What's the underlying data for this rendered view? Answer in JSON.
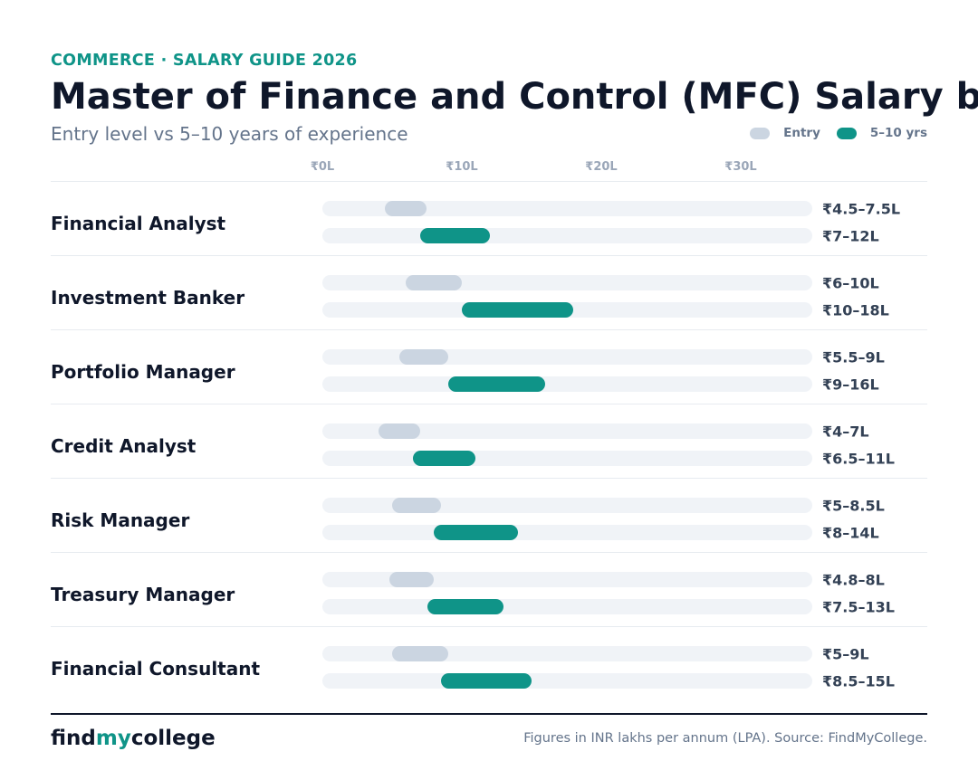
{
  "kicker": "COMMERCE · SALARY GUIDE 2026",
  "title": "Master of Finance and Control (MFC) Salary by",
  "subtitle": "Entry level vs 5–10 years of experience",
  "legend": {
    "entry_label": "Entry",
    "senior_label": "5–10 yrs",
    "entry_color": "#cbd5e1",
    "senior_color": "#0f9488"
  },
  "colors": {
    "accent": "#0f9488",
    "entry": "#cbd5e1",
    "track": "#f0f3f7"
  },
  "chart_data": {
    "type": "range-bar",
    "title": "Master of Finance and Control (MFC) Salary by",
    "subtitle": "Entry level vs 5–10 years of experience",
    "unit": "INR lakhs per annum",
    "x_ticks": [
      {
        "value": 0,
        "label": "₹0L"
      },
      {
        "value": 10,
        "label": "₹10L"
      },
      {
        "value": 20,
        "label": "₹20L"
      },
      {
        "value": 30,
        "label": "₹30L"
      }
    ],
    "xlim": [
      0,
      35
    ],
    "grid": false,
    "legend_position": "top-right",
    "series": [
      {
        "name": "Entry",
        "color": "#cbd5e1"
      },
      {
        "name": "5–10 yrs",
        "color": "#0f9488"
      }
    ],
    "roles": [
      {
        "name": "Financial Analyst",
        "entry": [
          4.5,
          7.5
        ],
        "entry_label": "₹4.5–7.5L",
        "senior": [
          7,
          12
        ],
        "senior_label": "₹7–12L"
      },
      {
        "name": "Investment Banker",
        "entry": [
          6,
          10
        ],
        "entry_label": "₹6–10L",
        "senior": [
          10,
          18
        ],
        "senior_label": "₹10–18L"
      },
      {
        "name": "Portfolio Manager",
        "entry": [
          5.5,
          9
        ],
        "entry_label": "₹5.5–9L",
        "senior": [
          9,
          16
        ],
        "senior_label": "₹9–16L"
      },
      {
        "name": "Credit Analyst",
        "entry": [
          4,
          7
        ],
        "entry_label": "₹4–7L",
        "senior": [
          6.5,
          11
        ],
        "senior_label": "₹6.5–11L"
      },
      {
        "name": "Risk Manager",
        "entry": [
          5,
          8.5
        ],
        "entry_label": "₹5–8.5L",
        "senior": [
          8,
          14
        ],
        "senior_label": "₹8–14L"
      },
      {
        "name": "Treasury Manager",
        "entry": [
          4.8,
          8
        ],
        "entry_label": "₹4.8–8L",
        "senior": [
          7.5,
          13
        ],
        "senior_label": "₹7.5–13L"
      },
      {
        "name": "Financial Consultant",
        "entry": [
          5,
          9
        ],
        "entry_label": "₹5–9L",
        "senior": [
          8.5,
          15
        ],
        "senior_label": "₹8.5–15L"
      }
    ]
  },
  "footer": {
    "brand_find": "find",
    "brand_my": "my",
    "brand_college": "college",
    "note": "Figures in INR lakhs per annum (LPA). Source: FindMyCollege."
  }
}
